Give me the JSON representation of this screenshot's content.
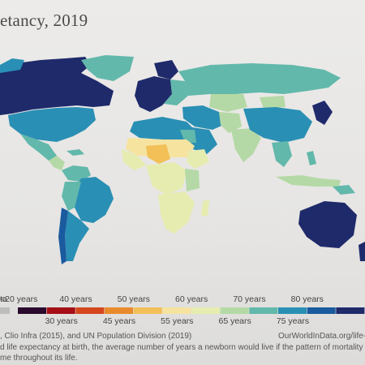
{
  "title": "etancy, 2019",
  "legend": {
    "nodata_label": "ta",
    "bins": [
      {
        "label": "<20 years",
        "color": "#2b0a2e"
      },
      {
        "label": "30 years",
        "color": "#a50f15"
      },
      {
        "label": "40 years",
        "color": "#d5461d"
      },
      {
        "label": "45 years",
        "color": "#e98b2c"
      },
      {
        "label": "50 years",
        "color": "#f2c057"
      },
      {
        "label": "55 years",
        "color": "#f6e3a0"
      },
      {
        "label": "60 years",
        "color": "#e6ecb0"
      },
      {
        "label": "65 years",
        "color": "#b5d9a6"
      },
      {
        "label": "70 years",
        "color": "#62b8ab"
      },
      {
        "label": "75 years",
        "color": "#2a8fb4"
      },
      {
        "label": "80 years",
        "color": "#1a5a9e"
      },
      {
        "label": "",
        "color": "#1f2a6b"
      }
    ],
    "upper_labels": [
      "<20 years",
      "40 years",
      "50 years",
      "60 years",
      "70 years",
      "80 years"
    ],
    "lower_labels": [
      "30 years",
      "45 years",
      "55 years",
      "65 years",
      "75 years"
    ]
  },
  "source_line": ", Clio Infra (2015), and UN Population Division (2019)",
  "site_line": "OurWorldInData.org/life-e",
  "note_line1": "d life expectancy at birth, the average number of years a newborn would live if the pattern of mortality in th",
  "note_line2": "me throughout its life.",
  "colors": {
    "ocean": "#e9e8e6",
    "very_high": "#1f2a6b",
    "high": "#1a5a9e",
    "upper_mid": "#2a8fb4",
    "mid": "#62b8ab",
    "lower_mid": "#b5d9a6",
    "low": "#e6ecb0",
    "lower": "#f6e3a0",
    "lowest": "#f2c057"
  }
}
